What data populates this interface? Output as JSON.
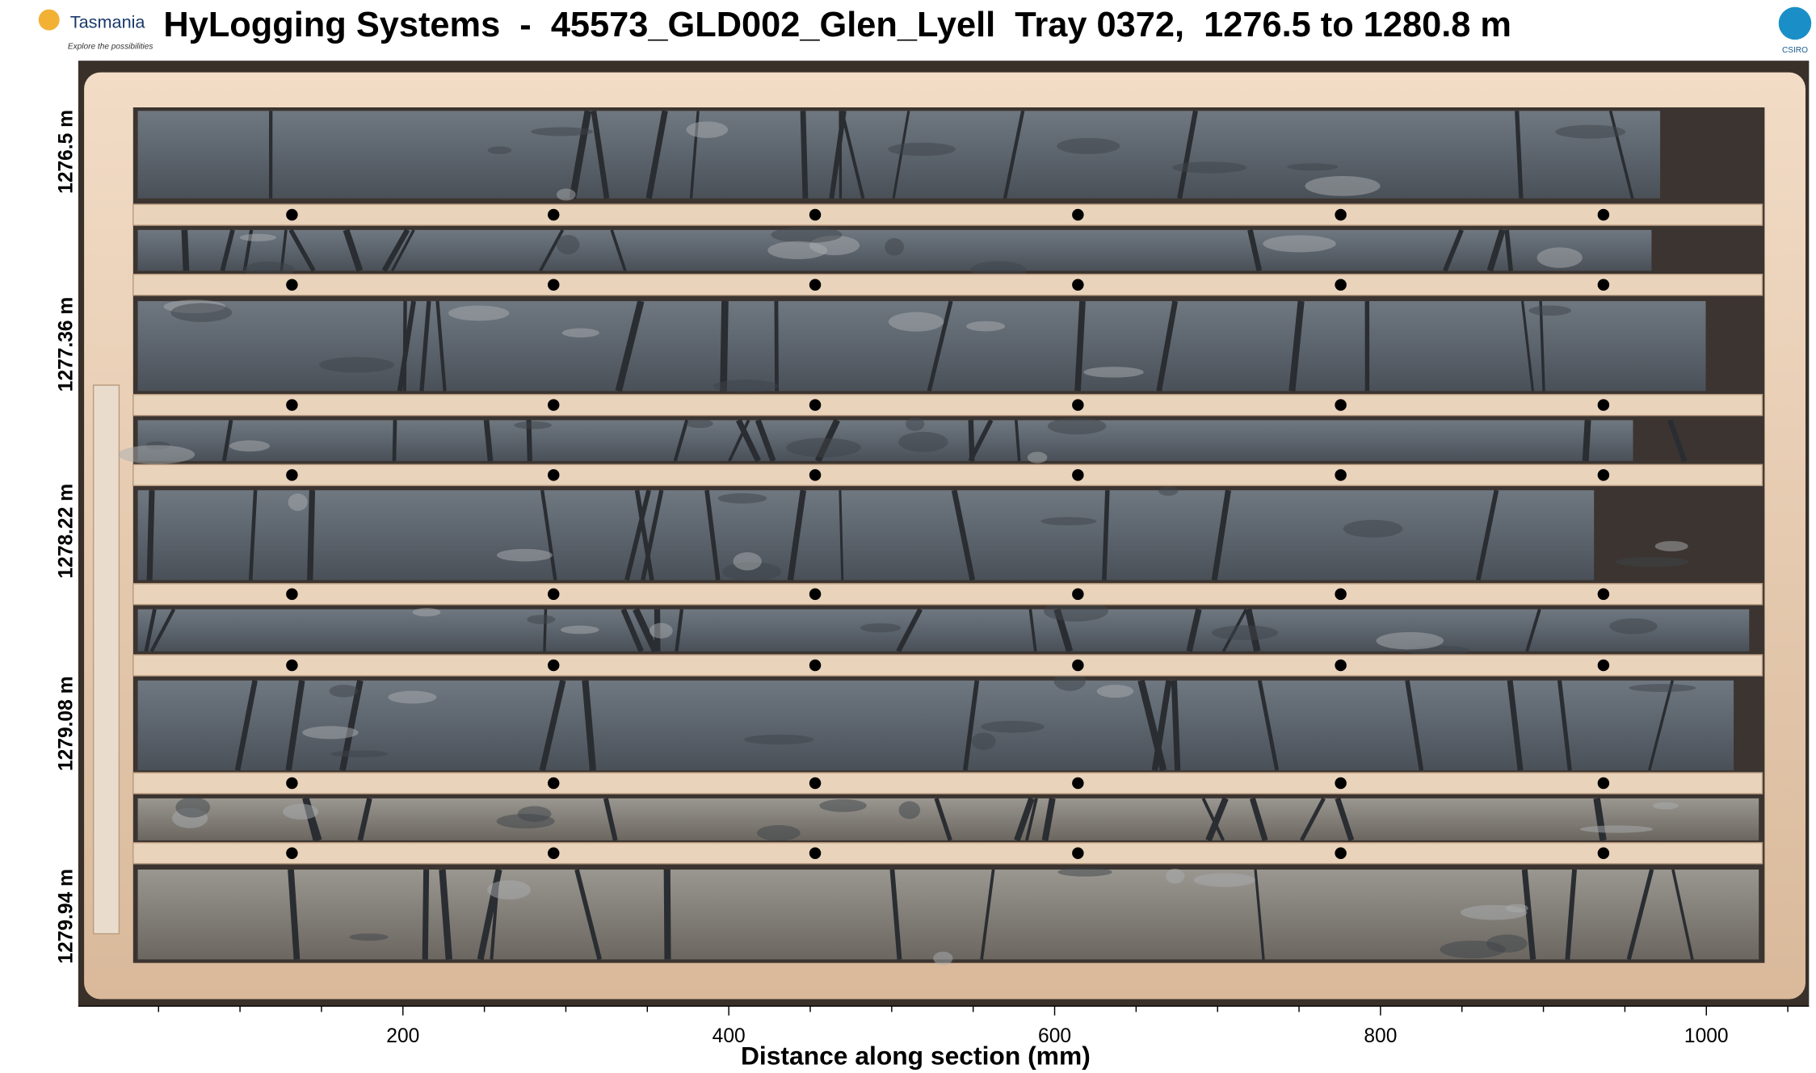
{
  "header": {
    "logo_text": "Tasmania",
    "logo_tagline": "Explore the possibilities",
    "title": "HyLogging Systems  -  45573_GLD002_Glen_Lyell  Tray 0372,  1276.5 to 1280.8 m",
    "right_logo": "CSIRO"
  },
  "axis": {
    "xlabel": "Distance along section (mm)",
    "xlim": [
      0,
      1063
    ],
    "xticks": [
      200,
      400,
      600,
      800,
      1000
    ],
    "xminorticks": [
      50,
      100,
      150,
      250,
      300,
      350,
      450,
      500,
      550,
      650,
      700,
      750,
      850,
      900,
      950,
      1050
    ]
  },
  "depth_labels": [
    "1276.5 m",
    "1277.36 m",
    "1278.22 m",
    "1279.08 m",
    "1279.94 m"
  ]
}
